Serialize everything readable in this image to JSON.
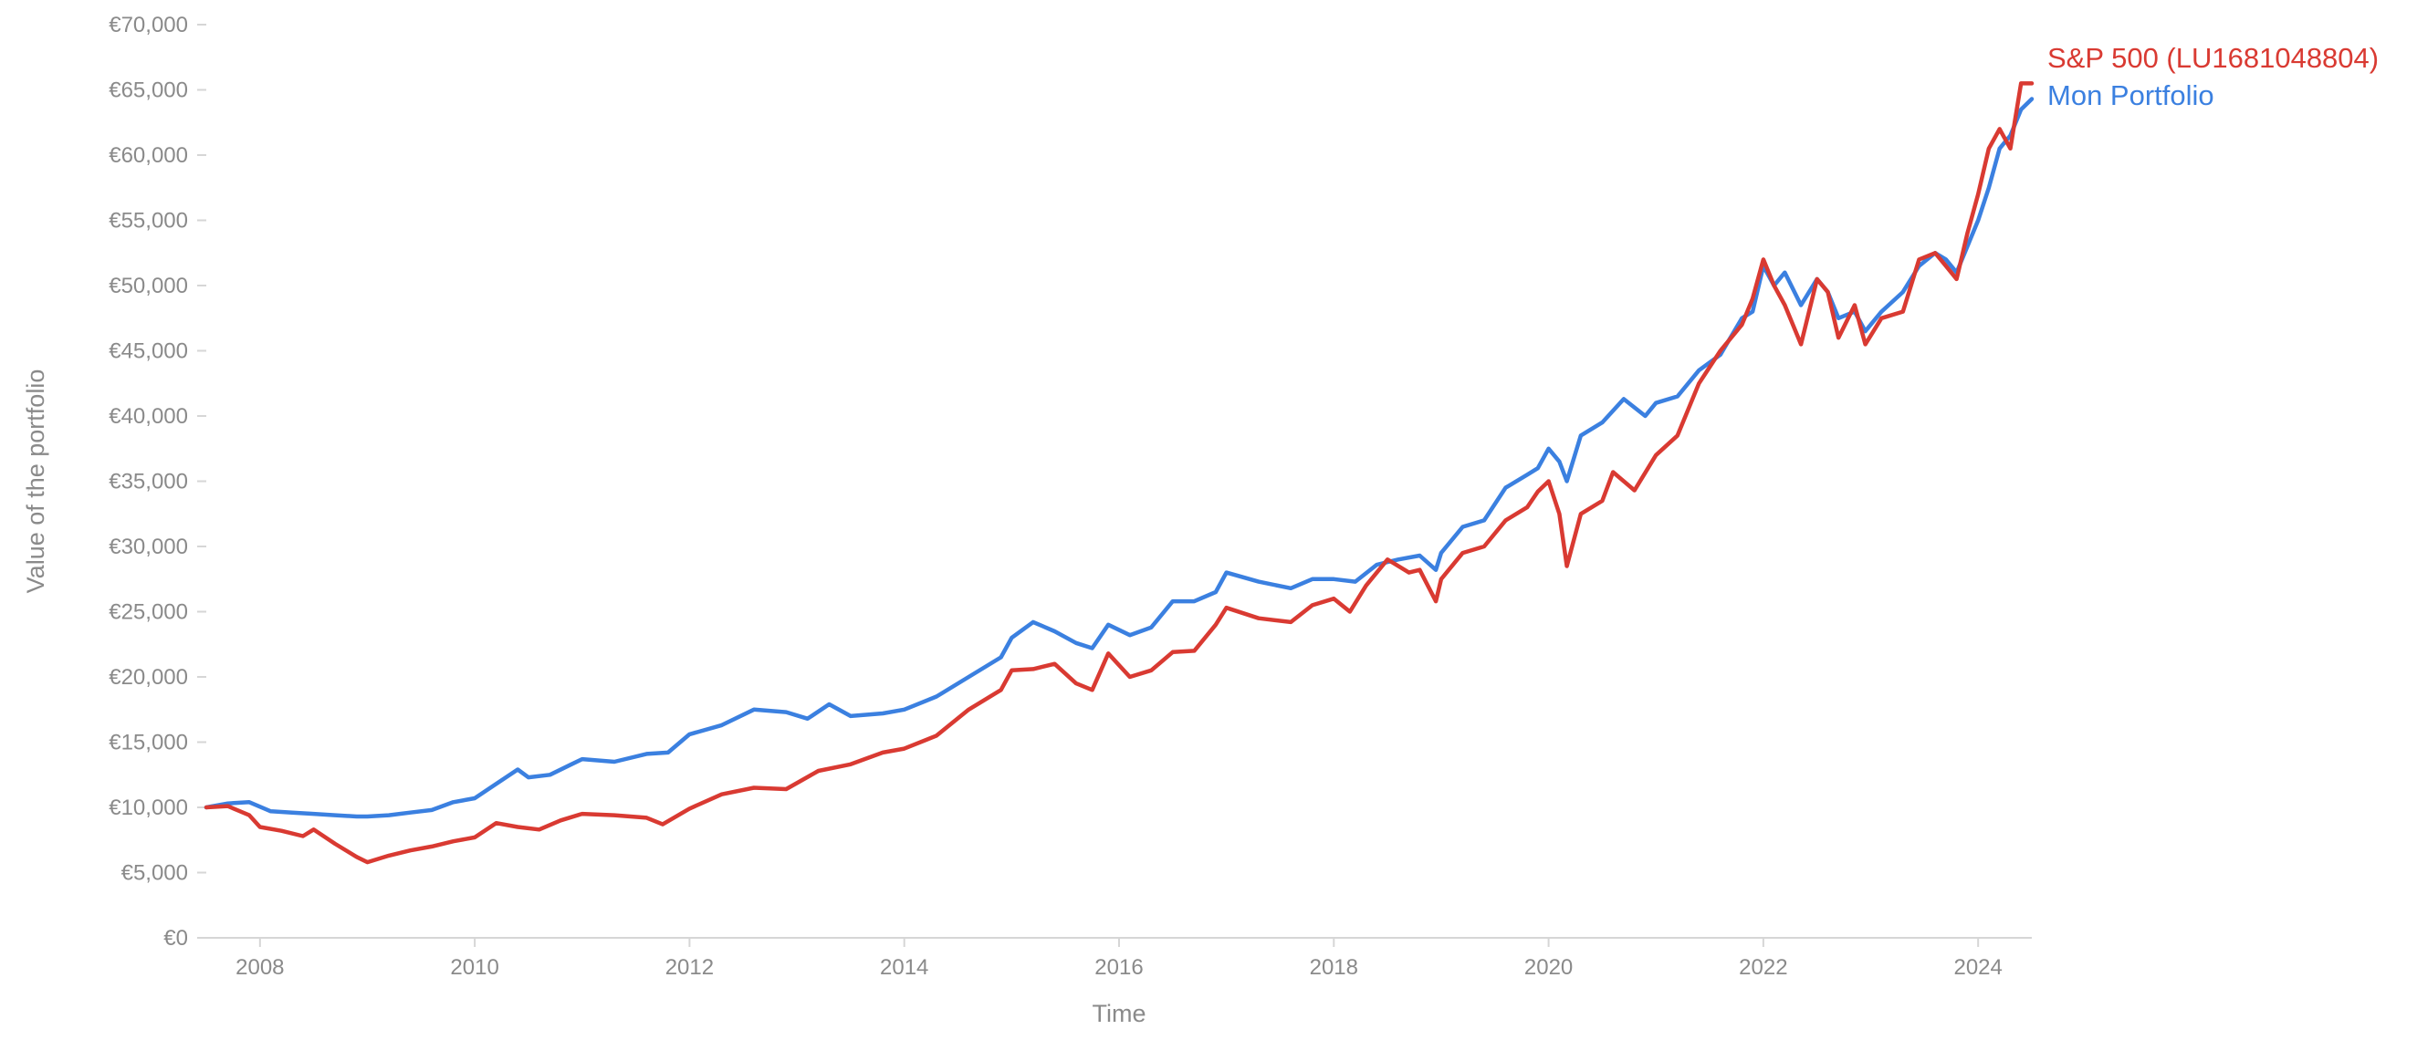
{
  "chart_data": {
    "type": "line",
    "title": "",
    "xlabel": "Time",
    "ylabel": "Value of the portfolio",
    "xlim": [
      2007.5,
      2024.5
    ],
    "ylim": [
      0,
      70000
    ],
    "grid": false,
    "legend": "end-of-line labels, top-right",
    "x_ticks": [
      2008,
      2010,
      2012,
      2014,
      2016,
      2018,
      2020,
      2022,
      2024
    ],
    "x_tick_labels": [
      "2008",
      "2010",
      "2012",
      "2014",
      "2016",
      "2018",
      "2020",
      "2022",
      "2024"
    ],
    "y_ticks": [
      0,
      5000,
      10000,
      15000,
      20000,
      25000,
      30000,
      35000,
      40000,
      45000,
      50000,
      55000,
      60000,
      65000,
      70000
    ],
    "y_tick_labels": [
      "€0",
      "€5,000",
      "€10,000",
      "€15,000",
      "€20,000",
      "€25,000",
      "€30,000",
      "€35,000",
      "€40,000",
      "€45,000",
      "€50,000",
      "€55,000",
      "€60,000",
      "€65,000",
      "€70,000"
    ],
    "series": [
      {
        "name": "S&P 500 (LU1681048804)",
        "color": "#d93a32",
        "x": [
          2007.5,
          2007.7,
          2007.9,
          2008.0,
          2008.2,
          2008.4,
          2008.5,
          2008.7,
          2008.9,
          2009.0,
          2009.2,
          2009.4,
          2009.6,
          2009.8,
          2010.0,
          2010.2,
          2010.4,
          2010.6,
          2010.8,
          2011.0,
          2011.3,
          2011.6,
          2011.75,
          2012.0,
          2012.3,
          2012.6,
          2012.9,
          2013.2,
          2013.5,
          2013.8,
          2014.0,
          2014.3,
          2014.6,
          2014.9,
          2015.0,
          2015.2,
          2015.4,
          2015.6,
          2015.75,
          2015.9,
          2016.1,
          2016.3,
          2016.5,
          2016.7,
          2016.9,
          2017.0,
          2017.3,
          2017.6,
          2017.8,
          2018.0,
          2018.15,
          2018.3,
          2018.5,
          2018.7,
          2018.8,
          2018.95,
          2019.0,
          2019.2,
          2019.4,
          2019.6,
          2019.8,
          2019.9,
          2020.0,
          2020.1,
          2020.17,
          2020.3,
          2020.5,
          2020.6,
          2020.8,
          2021.0,
          2021.2,
          2021.4,
          2021.6,
          2021.8,
          2021.9,
          2022.0,
          2022.1,
          2022.2,
          2022.35,
          2022.5,
          2022.6,
          2022.7,
          2022.85,
          2022.95,
          2023.1,
          2023.3,
          2023.45,
          2023.6,
          2023.7,
          2023.8,
          2023.9,
          2024.0,
          2024.1,
          2024.2,
          2024.3,
          2024.4,
          2024.5
        ],
        "values": [
          10000,
          10100,
          9400,
          8500,
          8200,
          7800,
          8300,
          7200,
          6200,
          5800,
          6300,
          6700,
          7000,
          7400,
          7700,
          8800,
          8500,
          8300,
          9000,
          9500,
          9400,
          9200,
          8700,
          9900,
          11000,
          11500,
          11400,
          12800,
          13300,
          14200,
          14500,
          15500,
          17500,
          19000,
          20500,
          20600,
          21000,
          19500,
          19000,
          21800,
          20000,
          20500,
          21900,
          22000,
          24000,
          25300,
          24500,
          24200,
          25500,
          26000,
          25000,
          27000,
          29000,
          28000,
          28200,
          25800,
          27500,
          29500,
          30000,
          32000,
          33000,
          34200,
          35000,
          32500,
          28500,
          32500,
          33500,
          35700,
          34300,
          37000,
          38500,
          42500,
          45000,
          47000,
          49000,
          52000,
          50000,
          48500,
          45500,
          50500,
          49500,
          46000,
          48500,
          45500,
          47500,
          48000,
          52000,
          52500,
          51500,
          50500,
          54000,
          57000,
          60500,
          62000,
          60500,
          65500,
          65500
        ]
      },
      {
        "name": "Mon Portfolio",
        "color": "#3b80e0",
        "x": [
          2007.5,
          2007.7,
          2007.9,
          2008.1,
          2008.3,
          2008.5,
          2008.7,
          2008.9,
          2009.0,
          2009.2,
          2009.4,
          2009.6,
          2009.8,
          2010.0,
          2010.2,
          2010.4,
          2010.5,
          2010.7,
          2010.9,
          2011.0,
          2011.3,
          2011.6,
          2011.8,
          2012.0,
          2012.3,
          2012.6,
          2012.9,
          2013.1,
          2013.3,
          2013.5,
          2013.8,
          2014.0,
          2014.3,
          2014.6,
          2014.9,
          2015.0,
          2015.2,
          2015.4,
          2015.6,
          2015.75,
          2015.9,
          2016.1,
          2016.3,
          2016.5,
          2016.7,
          2016.9,
          2017.0,
          2017.3,
          2017.6,
          2017.8,
          2018.0,
          2018.2,
          2018.4,
          2018.6,
          2018.8,
          2018.95,
          2019.0,
          2019.2,
          2019.4,
          2019.6,
          2019.8,
          2019.9,
          2020.0,
          2020.1,
          2020.17,
          2020.3,
          2020.5,
          2020.7,
          2020.9,
          2021.0,
          2021.2,
          2021.4,
          2021.6,
          2021.8,
          2021.9,
          2022.0,
          2022.1,
          2022.2,
          2022.35,
          2022.5,
          2022.6,
          2022.7,
          2022.85,
          2022.95,
          2023.1,
          2023.3,
          2023.45,
          2023.6,
          2023.7,
          2023.8,
          2023.9,
          2024.0,
          2024.1,
          2024.2,
          2024.3,
          2024.4,
          2024.5
        ],
        "values": [
          10000,
          10300,
          10400,
          9700,
          9600,
          9500,
          9400,
          9300,
          9300,
          9400,
          9600,
          9800,
          10400,
          10700,
          11800,
          12900,
          12300,
          12500,
          13300,
          13700,
          13500,
          14100,
          14200,
          15600,
          16300,
          17500,
          17300,
          16800,
          17900,
          17000,
          17200,
          17500,
          18500,
          20000,
          21500,
          23000,
          24200,
          23500,
          22600,
          22200,
          24000,
          23200,
          23800,
          25800,
          25800,
          26500,
          28000,
          27300,
          26800,
          27500,
          27500,
          27300,
          28600,
          29000,
          29300,
          28200,
          29500,
          31500,
          32000,
          34500,
          35500,
          36000,
          37500,
          36500,
          35000,
          38500,
          39500,
          41300,
          40000,
          41000,
          41500,
          43500,
          44700,
          47500,
          48000,
          51500,
          50000,
          51000,
          48500,
          50500,
          49500,
          47500,
          48000,
          46500,
          48000,
          49500,
          51500,
          52500,
          52000,
          51000,
          53000,
          55000,
          57500,
          60500,
          61500,
          63500,
          64300
        ]
      }
    ]
  }
}
